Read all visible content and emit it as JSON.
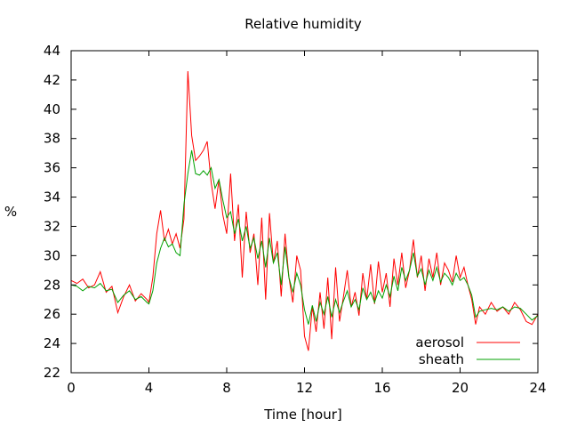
{
  "chart_data": {
    "type": "line",
    "title": "Relative humidity",
    "xlabel": "Time [hour]",
    "ylabel": "%",
    "xlim": [
      0,
      24
    ],
    "ylim": [
      22,
      44
    ],
    "xticks": [
      0,
      4,
      8,
      12,
      16,
      20,
      24
    ],
    "yticks": [
      22,
      24,
      26,
      28,
      30,
      32,
      34,
      36,
      38,
      40,
      42,
      44
    ],
    "legend_position": "bottom-right",
    "grid": false,
    "series": [
      {
        "name": "aerosol",
        "color": "#ff0000",
        "x": [
          0,
          0.3,
          0.6,
          0.9,
          1.2,
          1.5,
          1.8,
          2.1,
          2.4,
          2.7,
          3.0,
          3.3,
          3.6,
          3.9,
          4.0,
          4.2,
          4.4,
          4.6,
          4.8,
          5.0,
          5.2,
          5.4,
          5.6,
          5.8,
          6.0,
          6.2,
          6.4,
          6.6,
          6.8,
          7.0,
          7.2,
          7.4,
          7.6,
          7.8,
          8.0,
          8.2,
          8.4,
          8.6,
          8.8,
          9.0,
          9.2,
          9.4,
          9.6,
          9.8,
          10.0,
          10.2,
          10.4,
          10.6,
          10.8,
          11.0,
          11.2,
          11.4,
          11.6,
          11.8,
          12.0,
          12.2,
          12.4,
          12.6,
          12.8,
          13.0,
          13.2,
          13.4,
          13.6,
          13.8,
          14.0,
          14.2,
          14.4,
          14.6,
          14.8,
          15.0,
          15.2,
          15.4,
          15.6,
          15.8,
          16.0,
          16.2,
          16.4,
          16.6,
          16.8,
          17.0,
          17.2,
          17.4,
          17.6,
          17.8,
          18.0,
          18.2,
          18.4,
          18.6,
          18.8,
          19.0,
          19.2,
          19.4,
          19.6,
          19.8,
          20.0,
          20.2,
          20.4,
          20.6,
          20.8,
          21.0,
          21.3,
          21.6,
          21.9,
          22.2,
          22.5,
          22.8,
          23.1,
          23.4,
          23.7,
          24.0
        ],
        "values": [
          28.3,
          28.1,
          28.4,
          27.8,
          28.0,
          28.9,
          27.5,
          27.9,
          26.1,
          27.2,
          28.0,
          26.9,
          27.4,
          27.0,
          26.8,
          28.5,
          31.5,
          33.1,
          31.0,
          31.8,
          30.8,
          31.5,
          30.5,
          32.5,
          42.6,
          38.2,
          36.5,
          36.8,
          37.2,
          37.8,
          35.0,
          33.2,
          35.2,
          32.8,
          31.5,
          35.6,
          31.0,
          33.5,
          28.5,
          33.0,
          30.2,
          31.5,
          28.0,
          32.6,
          27.0,
          32.9,
          29.5,
          31.0,
          27.2,
          31.5,
          28.5,
          26.8,
          30.0,
          29.0,
          24.5,
          23.5,
          26.5,
          24.8,
          27.5,
          25.0,
          28.5,
          24.3,
          29.2,
          25.5,
          27.2,
          29.0,
          26.5,
          27.5,
          25.9,
          28.8,
          27.0,
          29.4,
          26.7,
          29.6,
          27.5,
          28.8,
          26.5,
          29.8,
          28.0,
          30.2,
          27.8,
          29.0,
          31.1,
          28.5,
          30.0,
          27.6,
          29.8,
          28.5,
          30.2,
          28.0,
          29.5,
          29.0,
          28.2,
          30.0,
          28.5,
          29.2,
          28.0,
          27.0,
          25.3,
          26.5,
          26.0,
          26.8,
          26.2,
          26.5,
          26.0,
          26.8,
          26.3,
          25.5,
          25.3,
          26.0
        ]
      },
      {
        "name": "sheath",
        "color": "#00a000",
        "x": [
          0,
          0.3,
          0.6,
          0.9,
          1.2,
          1.5,
          1.8,
          2.1,
          2.4,
          2.7,
          3.0,
          3.3,
          3.6,
          3.9,
          4.0,
          4.2,
          4.4,
          4.6,
          4.8,
          5.0,
          5.2,
          5.4,
          5.6,
          5.8,
          6.0,
          6.2,
          6.4,
          6.6,
          6.8,
          7.0,
          7.2,
          7.4,
          7.6,
          7.8,
          8.0,
          8.2,
          8.4,
          8.6,
          8.8,
          9.0,
          9.2,
          9.4,
          9.6,
          9.8,
          10.0,
          10.2,
          10.4,
          10.6,
          10.8,
          11.0,
          11.2,
          11.4,
          11.6,
          11.8,
          12.0,
          12.2,
          12.4,
          12.6,
          12.8,
          13.0,
          13.2,
          13.4,
          13.6,
          13.8,
          14.0,
          14.2,
          14.4,
          14.6,
          14.8,
          15.0,
          15.2,
          15.4,
          15.6,
          15.8,
          16.0,
          16.2,
          16.4,
          16.6,
          16.8,
          17.0,
          17.2,
          17.4,
          17.6,
          17.8,
          18.0,
          18.2,
          18.4,
          18.6,
          18.8,
          19.0,
          19.2,
          19.4,
          19.6,
          19.8,
          20.0,
          20.2,
          20.4,
          20.6,
          20.8,
          21.0,
          21.3,
          21.6,
          21.9,
          22.2,
          22.5,
          22.8,
          23.1,
          23.4,
          23.7,
          24.0
        ],
        "values": [
          28.0,
          27.9,
          27.6,
          27.9,
          27.8,
          28.1,
          27.6,
          27.7,
          26.8,
          27.3,
          27.6,
          27.0,
          27.2,
          26.8,
          26.7,
          27.6,
          29.5,
          30.5,
          31.2,
          30.6,
          30.8,
          30.2,
          30.0,
          33.5,
          35.6,
          37.2,
          35.6,
          35.5,
          35.8,
          35.5,
          36.0,
          34.6,
          35.2,
          33.8,
          32.6,
          33.0,
          31.5,
          32.5,
          31.0,
          32.0,
          30.5,
          31.2,
          29.8,
          31.0,
          29.2,
          31.2,
          29.5,
          30.2,
          28.0,
          30.6,
          28.5,
          27.5,
          28.8,
          28.0,
          26.3,
          25.3,
          26.6,
          25.5,
          26.8,
          26.0,
          27.2,
          25.8,
          27.0,
          26.1,
          26.9,
          27.6,
          26.5,
          27.0,
          26.3,
          27.8,
          27.0,
          27.5,
          26.8,
          27.6,
          27.1,
          28.0,
          27.2,
          28.6,
          27.6,
          29.2,
          28.3,
          29.0,
          30.2,
          28.6,
          29.1,
          28.0,
          29.0,
          28.3,
          29.2,
          28.2,
          28.8,
          28.5,
          28.0,
          28.8,
          28.3,
          28.5,
          28.0,
          27.3,
          25.8,
          26.2,
          26.3,
          26.4,
          26.3,
          26.5,
          26.2,
          26.5,
          26.4,
          26.0,
          25.6,
          25.9
        ]
      }
    ]
  }
}
